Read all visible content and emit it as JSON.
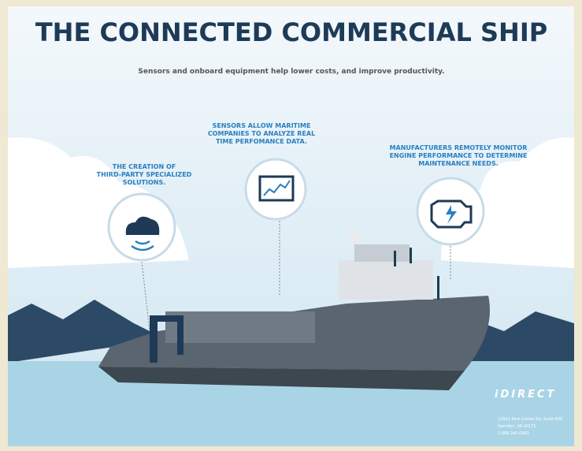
{
  "title": "THE CONNECTED COMMERCIAL SHIP",
  "subtitle": "Sensors and onboard equipment help lower costs, and improve productivity.",
  "callouts": [
    {
      "lines": [
        "THE CREATION OF",
        "THIRD-PARTY SPECIALIZED",
        "SOLUTIONS."
      ]
    },
    {
      "lines": [
        "SENSORS ALLOW MARITIME",
        "COMPANIES TO ANALYZE REAL",
        "TIME PERFOMANCE DATA."
      ]
    },
    {
      "lines": [
        "MANUFACTURERS REMOTELY MONITOR",
        "ENGINE PERFORMANCE TO DETERMINE",
        "MAINTENANCE NEEDS."
      ]
    }
  ],
  "logo": "iDIRECT",
  "address": [
    "13921 Park Center Rd, Suite 600",
    "Herndon, VA 20171",
    "1.866.345.0983"
  ]
}
